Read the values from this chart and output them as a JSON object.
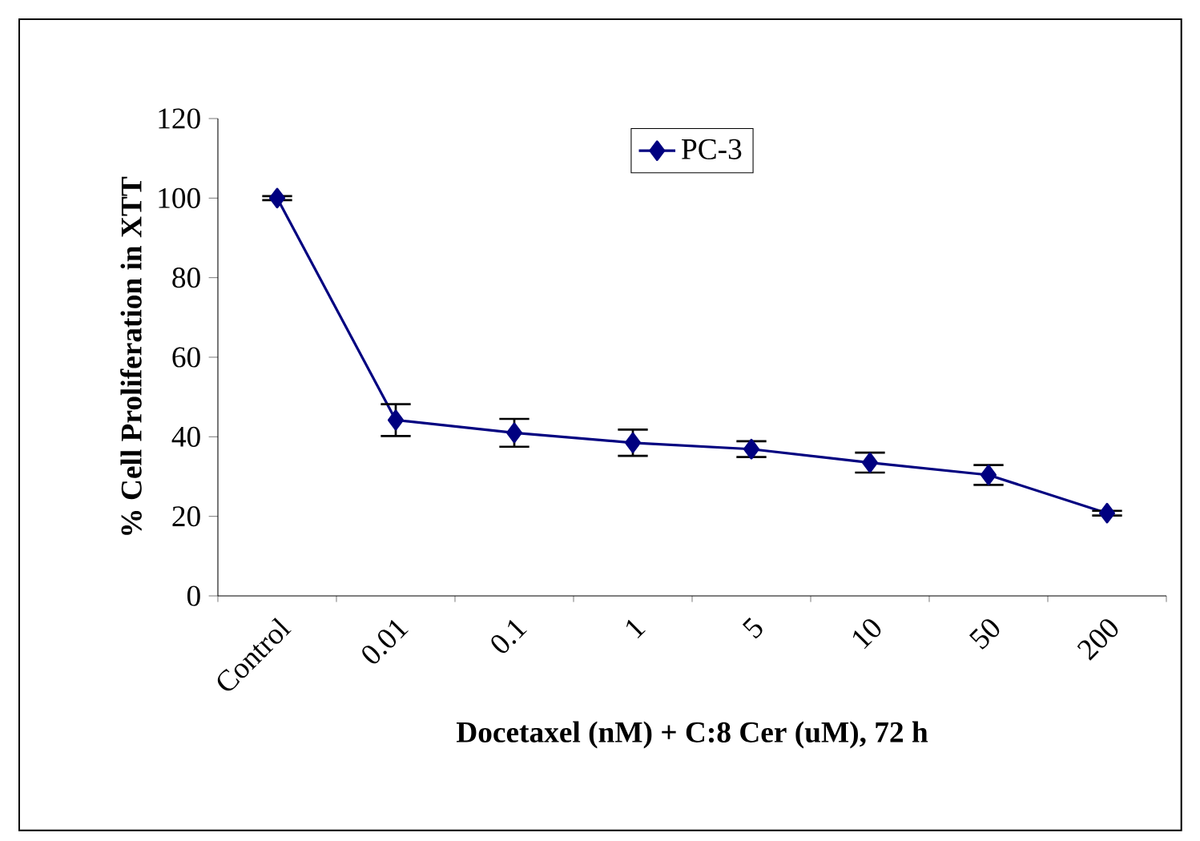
{
  "chart_data": {
    "type": "line",
    "xlabel": "Docetaxel (nM) + C:8 Cer (uM), 72 h",
    "ylabel": "% Cell Proliferation in XTT",
    "categories": [
      "Control",
      "0.01",
      "0.1",
      "1",
      "5",
      "10",
      "50",
      "200"
    ],
    "series": [
      {
        "name": "PC-3",
        "color": "#000080",
        "values": [
          100,
          44.2,
          41,
          38.5,
          36.9,
          33.5,
          30.4,
          20.8
        ],
        "errors": [
          0.5,
          4,
          3.5,
          3.3,
          2,
          2.5,
          2.5,
          0.6
        ]
      }
    ],
    "ylim": [
      0,
      120
    ],
    "yticks": [
      0,
      20,
      40,
      60,
      80,
      100,
      120
    ],
    "marker": "diamond",
    "line_style": "solid",
    "legend": "top",
    "grid": false
  }
}
